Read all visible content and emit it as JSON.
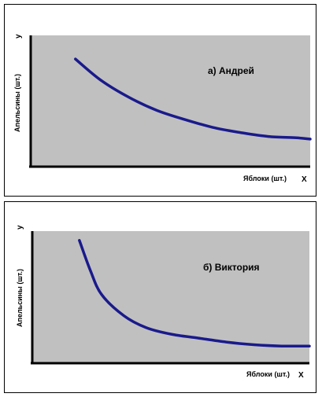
{
  "chart_data": [
    {
      "type": "line",
      "annotation": "а) Андрей",
      "xlabel": "Яблоки (шт.)",
      "ylabel": "Апельсины (шт.)",
      "x_axis_letter": "X",
      "y_axis_letter": "y",
      "xlim": [
        0,
        100
      ],
      "ylim": [
        0,
        100
      ],
      "grid": false,
      "series_color": "#1a1a8c",
      "plot_bg": "#c0c0c0",
      "x": [
        16,
        25,
        35,
        45,
        55,
        65,
        75,
        85,
        95,
        100
      ],
      "y": [
        82,
        66,
        53,
        43,
        36,
        30,
        26,
        23,
        22,
        21
      ]
    },
    {
      "type": "line",
      "annotation": "б) Виктория",
      "xlabel": "Яблоки (шт.)",
      "ylabel": "Апельсины (шт.)",
      "x_axis_letter": "X",
      "y_axis_letter": "y",
      "xlim": [
        0,
        100
      ],
      "ylim": [
        0,
        100
      ],
      "grid": false,
      "series_color": "#1a1a8c",
      "plot_bg": "#c0c0c0",
      "x": [
        17,
        21,
        25,
        33,
        41,
        50,
        60,
        70,
        80,
        90,
        100
      ],
      "y": [
        93,
        70,
        52,
        36,
        27,
        22,
        19,
        16,
        14,
        13,
        13
      ]
    }
  ]
}
